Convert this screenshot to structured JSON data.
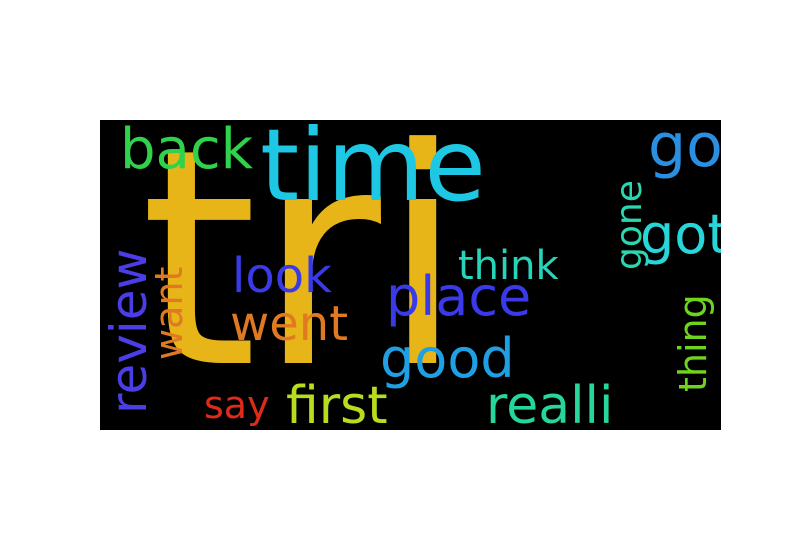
{
  "cloud": {
    "background": "#000000",
    "words": {
      "tri": {
        "text": "tri",
        "color": "#e8b518"
      },
      "time": {
        "text": "time",
        "color": "#1ec7e3"
      },
      "back": {
        "text": "back",
        "color": "#2fd24a"
      },
      "go": {
        "text": "go",
        "color": "#2a8fe0"
      },
      "gone": {
        "text": "gone",
        "color": "#2ad8b0"
      },
      "got": {
        "text": "got",
        "color": "#27d6d8"
      },
      "review": {
        "text": "review",
        "color": "#4b3ee8"
      },
      "want": {
        "text": "want",
        "color": "#e07a22"
      },
      "look": {
        "text": "look",
        "color": "#3a3ae8"
      },
      "think": {
        "text": "think",
        "color": "#28d4b8"
      },
      "place": {
        "text": "place",
        "color": "#3a3ae8"
      },
      "went": {
        "text": "went",
        "color": "#e07a22"
      },
      "thing": {
        "text": "thing",
        "color": "#6ed41e"
      },
      "good": {
        "text": "good",
        "color": "#1ea0e3"
      },
      "say": {
        "text": "say",
        "color": "#e02a1a"
      },
      "first": {
        "text": "first",
        "color": "#b8dc1e"
      },
      "realli": {
        "text": "realli",
        "color": "#27d69a"
      }
    }
  }
}
